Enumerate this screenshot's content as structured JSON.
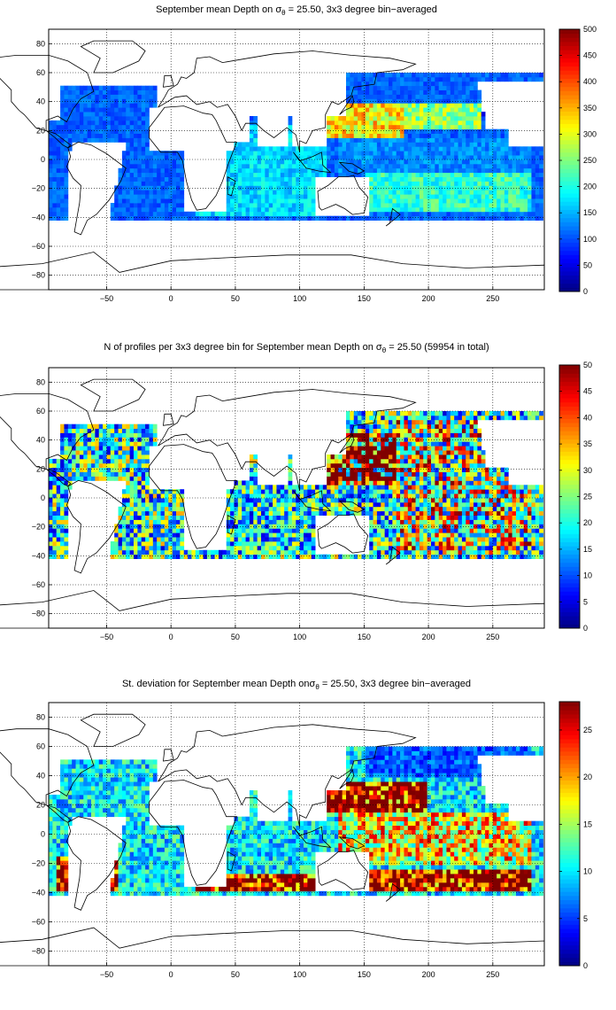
{
  "figure": {
    "panels": [
      {
        "id": "mean-depth",
        "title_pre": "September mean Depth on ",
        "title_sym": "σ",
        "title_sub": "θ",
        "title_post": " = 25.50, 3x3 degree bin−averaged",
        "colorbar": {
          "min": 0,
          "max": 500,
          "ticks": [
            "0",
            "50",
            "100",
            "150",
            "200",
            "250",
            "300",
            "350",
            "400",
            "450",
            "500"
          ]
        }
      },
      {
        "id": "profile-count",
        "title_pre": "N of profiles per 3x3 degree bin for September mean Depth on ",
        "title_sym": "σ",
        "title_sub": "θ",
        "title_post": " = 25.50 (59954 in total)",
        "colorbar": {
          "min": 0,
          "max": 50,
          "ticks": [
            "0",
            "5",
            "10",
            "15",
            "20",
            "25",
            "30",
            "35",
            "40",
            "45",
            "50"
          ]
        }
      },
      {
        "id": "std-deviation",
        "title_pre": "St. deviation for September mean Depth on",
        "title_sym": "σ",
        "title_sub": "θ",
        "title_post": " = 25.50, 3x3 degree bin−averaged",
        "colorbar": {
          "min": 0,
          "max": 28,
          "ticks": [
            "0",
            "5",
            "10",
            "15",
            "20",
            "25"
          ]
        }
      }
    ],
    "x_ticks": [
      "−50",
      "0",
      "50",
      "100",
      "150",
      "200",
      "250"
    ],
    "y_ticks": [
      "80",
      "60",
      "40",
      "20",
      "0",
      "−20",
      "−40",
      "−60",
      "−80"
    ]
  },
  "chart_data": [
    {
      "type": "heatmap",
      "title": "September mean Depth on σθ = 25.50, 3x3 degree bin−averaged",
      "xlim": [
        -95,
        290
      ],
      "ylim": [
        -90,
        90
      ],
      "x_ticks": [
        -50,
        0,
        50,
        100,
        150,
        200,
        250
      ],
      "y_ticks": [
        80,
        60,
        40,
        20,
        0,
        -20,
        -40,
        -60,
        -80
      ],
      "grid": true,
      "colormap": "jet",
      "colorbar": {
        "min": 0,
        "max": 500
      },
      "regions": [
        {
          "lon": [
            -90,
            15
          ],
          "lat": [
            -40,
            50
          ],
          "approx_value": 110
        },
        {
          "lon": [
            120,
            180
          ],
          "lat": [
            15,
            40
          ],
          "approx_value": 320
        },
        {
          "lon": [
            180,
            240
          ],
          "lat": [
            20,
            40
          ],
          "approx_value": 260
        },
        {
          "lon": [
            130,
            280
          ],
          "lat": [
            -10,
            15
          ],
          "approx_value": 130
        },
        {
          "lon": [
            150,
            280
          ],
          "lat": [
            -35,
            -10
          ],
          "approx_value": 210
        },
        {
          "lon": [
            20,
            120
          ],
          "lat": [
            -40,
            25
          ],
          "approx_value": 170
        },
        {
          "lon": [
            240,
            285
          ],
          "lat": [
            30,
            55
          ],
          "approx_value": 50
        }
      ]
    },
    {
      "type": "heatmap",
      "title": "N of profiles per 3x3 degree bin for September mean Depth on σθ = 25.50 (59954 in total)",
      "total_profiles": 59954,
      "xlim": [
        -95,
        290
      ],
      "ylim": [
        -90,
        90
      ],
      "x_ticks": [
        -50,
        0,
        50,
        100,
        150,
        200,
        250
      ],
      "y_ticks": [
        80,
        60,
        40,
        20,
        0,
        -20,
        -40,
        -60,
        -80
      ],
      "grid": true,
      "colormap": "jet",
      "colorbar": {
        "min": 0,
        "max": 50
      },
      "regions": [
        {
          "lon": [
            -90,
            15
          ],
          "lat": [
            -40,
            50
          ],
          "approx_value": 20
        },
        {
          "lon": [
            120,
            175
          ],
          "lat": [
            10,
            45
          ],
          "approx_value": 50
        },
        {
          "lon": [
            175,
            280
          ],
          "lat": [
            -40,
            55
          ],
          "approx_value": 28
        },
        {
          "lon": [
            20,
            120
          ],
          "lat": [
            -40,
            25
          ],
          "approx_value": 18
        }
      ]
    },
    {
      "type": "heatmap",
      "title": "St. deviation for September mean Depth on σθ = 25.50, 3x3 degree bin−averaged",
      "xlim": [
        -95,
        290
      ],
      "ylim": [
        -90,
        90
      ],
      "x_ticks": [
        -50,
        0,
        50,
        100,
        150,
        200,
        250
      ],
      "y_ticks": [
        80,
        60,
        40,
        20,
        0,
        -20,
        -40,
        -60,
        -80
      ],
      "grid": true,
      "colormap": "jet",
      "colorbar": {
        "min": 0,
        "max": 28
      },
      "regions": [
        {
          "lon": [
            -90,
            15
          ],
          "lat": [
            -15,
            45
          ],
          "approx_value": 10
        },
        {
          "lon": [
            -90,
            -40
          ],
          "lat": [
            -40,
            -15
          ],
          "approx_value": 28
        },
        {
          "lon": [
            120,
            200
          ],
          "lat": [
            15,
            35
          ],
          "approx_value": 28
        },
        {
          "lon": [
            140,
            280
          ],
          "lat": [
            -40,
            -25
          ],
          "approx_value": 28
        },
        {
          "lon": [
            150,
            280
          ],
          "lat": [
            40,
            60
          ],
          "approx_value": 6
        },
        {
          "lon": [
            130,
            280
          ],
          "lat": [
            -20,
            15
          ],
          "approx_value": 18
        },
        {
          "lon": [
            20,
            120
          ],
          "lat": [
            -40,
            -28
          ],
          "approx_value": 28
        }
      ]
    }
  ]
}
